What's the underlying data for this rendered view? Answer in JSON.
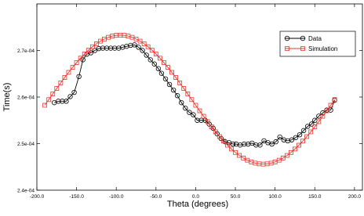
{
  "chart_data": {
    "type": "line",
    "x_label": "Theta (degrees)",
    "y_label": "Time(s)",
    "xlim": [
      -200,
      210
    ],
    "ylim": [
      0.00024,
      0.00028
    ],
    "xticks": [
      {
        "value": -200,
        "label": "-200.0"
      },
      {
        "value": -150,
        "label": "-150.0"
      },
      {
        "value": -100,
        "label": "-100.0"
      },
      {
        "value": -50,
        "label": "-50.0"
      },
      {
        "value": 0,
        "label": "0.0"
      },
      {
        "value": 50,
        "label": "50.0"
      },
      {
        "value": 100,
        "label": "100.0"
      },
      {
        "value": 150,
        "label": "150.0"
      },
      {
        "value": 200,
        "label": "200.0"
      }
    ],
    "yticks": [
      {
        "value": 0.00024,
        "label": "2.4e-04"
      },
      {
        "value": 0.00025,
        "label": "2.5e-04"
      },
      {
        "value": 0.00026,
        "label": "2.6e-04"
      },
      {
        "value": 0.00027,
        "label": "2.7e-04"
      }
    ],
    "legend": "upper right",
    "series": [
      {
        "name": "Data",
        "color": "#000000",
        "marker": "circle",
        "x": [
          -178,
          -173,
          -168,
          -163,
          -158,
          -153,
          -147,
          -142,
          -137,
          -132,
          -127,
          -122,
          -117,
          -112,
          -107,
          -102,
          -97,
          -92,
          -87,
          -82,
          -77,
          -72,
          -67,
          -62,
          -57,
          -52,
          -47,
          -43,
          -38,
          -33,
          -28,
          -23,
          -18,
          -13,
          -8,
          -3,
          2,
          7,
          12,
          17,
          22,
          27,
          32,
          37,
          42,
          47,
          51,
          56,
          61,
          66,
          71,
          76,
          81,
          86,
          91,
          96,
          101,
          106,
          111,
          116,
          121,
          126,
          131,
          136,
          141,
          146,
          150,
          155,
          160,
          165,
          170,
          175
        ],
        "values": [
          0.0002588,
          0.0002591,
          0.0002591,
          0.0002591,
          0.0002601,
          0.000261,
          0.0002644,
          0.000268,
          0.0002692,
          0.0002695,
          0.00027,
          0.0002704,
          0.0002705,
          0.0002705,
          0.0002705,
          0.0002705,
          0.0002705,
          0.0002707,
          0.0002709,
          0.0002711,
          0.0002712,
          0.0002707,
          0.00027,
          0.000269,
          0.000268,
          0.0002671,
          0.0002661,
          0.0002651,
          0.0002639,
          0.0002627,
          0.0002615,
          0.0002603,
          0.0002588,
          0.0002576,
          0.0002567,
          0.0002562,
          0.000255,
          0.000255,
          0.000255,
          0.0002542,
          0.0002533,
          0.0002521,
          0.0002511,
          0.0002504,
          0.0002502,
          0.0002499,
          0.0002499,
          0.0002497,
          0.0002499,
          0.0002499,
          0.0002501,
          0.0002497,
          0.0002497,
          0.0002506,
          0.0002502,
          0.0002499,
          0.0002504,
          0.0002514,
          0.0002508,
          0.0002506,
          0.0002508,
          0.0002513,
          0.0002519,
          0.0002528,
          0.0002537,
          0.0002542,
          0.000255,
          0.0002559,
          0.0002566,
          0.0002572,
          0.0002572,
          0.0002593
        ]
      },
      {
        "name": "Simulation",
        "color": "#e8342c",
        "marker": "square",
        "x": [
          -190,
          -185,
          -180,
          -175,
          -170,
          -165,
          -160,
          -155,
          -150,
          -145,
          -140,
          -135,
          -130,
          -125,
          -120,
          -115,
          -110,
          -105,
          -100,
          -95,
          -90,
          -85,
          -80,
          -75,
          -70,
          -65,
          -60,
          -55,
          -50,
          -45,
          -40,
          -35,
          -30,
          -25,
          -20,
          -15,
          -10,
          -5,
          0,
          5,
          10,
          15,
          20,
          25,
          30,
          35,
          40,
          45,
          50,
          55,
          60,
          65,
          70,
          75,
          80,
          85,
          90,
          95,
          100,
          105,
          110,
          115,
          120,
          125,
          130,
          135,
          140,
          145,
          150,
          155,
          160,
          165,
          170,
          175
        ],
        "values": [
          0.00025824,
          0.00025945,
          0.00026066,
          0.00026185,
          0.00026303,
          0.00026419,
          0.0002653,
          0.00026638,
          0.00026739,
          0.00026835,
          0.00026924,
          0.00027006,
          0.0002708,
          0.00027144,
          0.000272,
          0.00027246,
          0.00027283,
          0.00027309,
          0.00027325,
          0.0002733,
          0.00027325,
          0.00027309,
          0.00027283,
          0.00027246,
          0.000272,
          0.00027144,
          0.0002708,
          0.00027006,
          0.00026924,
          0.00026835,
          0.00026739,
          0.00026638,
          0.0002653,
          0.00026419,
          0.00026303,
          0.00026185,
          0.00026066,
          0.00025945,
          0.00025824,
          0.00025705,
          0.00025587,
          0.00025471,
          0.0002536,
          0.00025253,
          0.00025151,
          0.00025055,
          0.00024966,
          0.00024884,
          0.0002481,
          0.00024746,
          0.0002469,
          0.00024644,
          0.00024607,
          0.00024581,
          0.00024566,
          0.0002456,
          0.00024566,
          0.00024581,
          0.00024607,
          0.00024644,
          0.0002469,
          0.00024746,
          0.0002481,
          0.00024884,
          0.00024966,
          0.00025055,
          0.00025151,
          0.00025253,
          0.0002536,
          0.00025471,
          0.00025587,
          0.00025705,
          0.00025824,
          0.00025945
        ]
      }
    ]
  }
}
